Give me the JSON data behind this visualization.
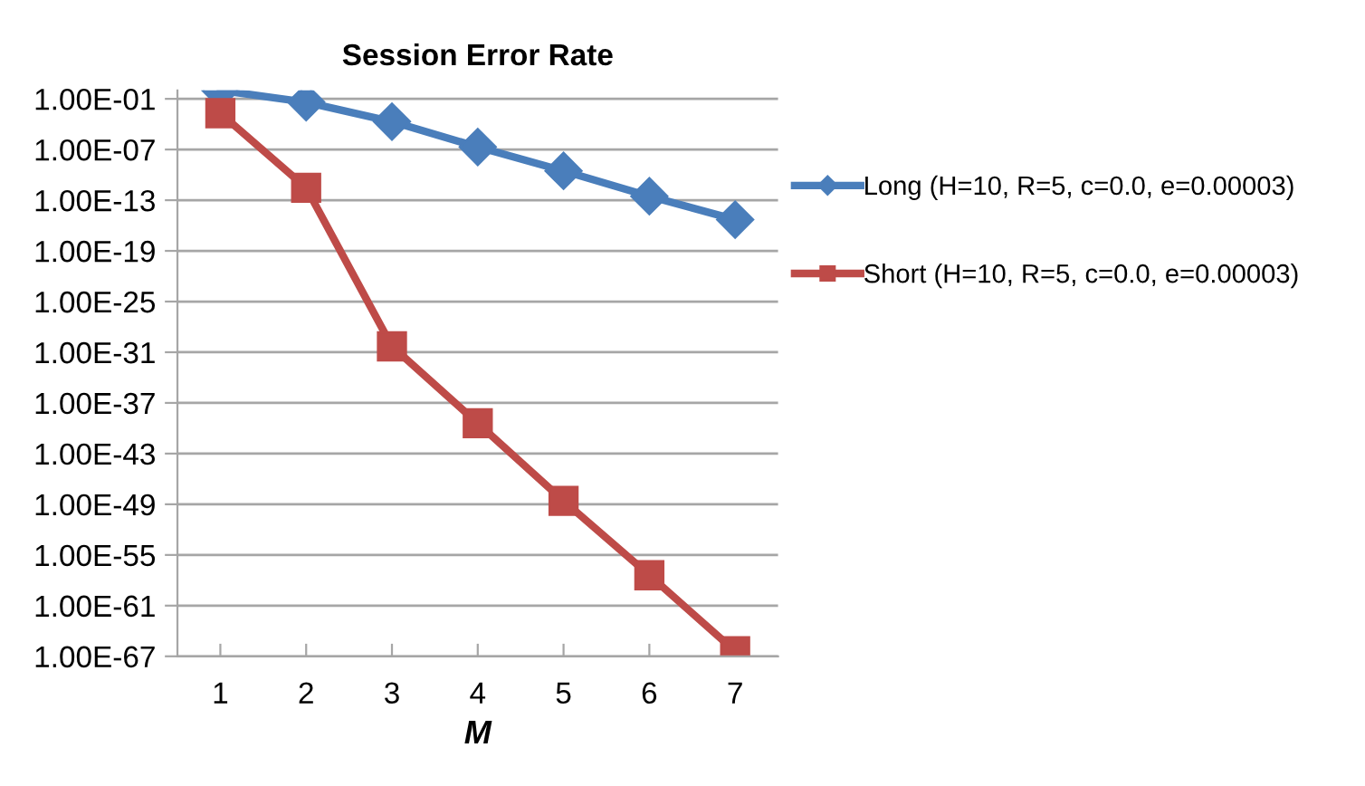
{
  "chart_data": {
    "type": "line",
    "title": "Session Error Rate",
    "xlabel": "M",
    "categories": [
      "1",
      "2",
      "3",
      "4",
      "5",
      "6",
      "7"
    ],
    "series": [
      {
        "name": "Long (H=10, R=5, c=0.0, e=0.00003)",
        "color": "#4a7ebb",
        "marker": "diamond",
        "values": [
          1,
          0.04,
          0.0002,
          2e-07,
          3e-10,
          3e-13,
          5e-16
        ]
      },
      {
        "name": "Short (H=10, R=5, c=0.0, e=0.00003)",
        "color": "#be4b48",
        "marker": "square",
        "values": [
          0.002,
          3e-12,
          5e-31,
          4e-40,
          2.5e-49,
          4e-58,
          4e-67
        ]
      }
    ],
    "log": "y",
    "ylim": [
      1e-67,
      1
    ],
    "yticks": [
      {
        "value": 0.1,
        "label": "1.00E-01"
      },
      {
        "value": 1e-07,
        "label": "1.00E-07"
      },
      {
        "value": 1e-13,
        "label": "1.00E-13"
      },
      {
        "value": 1e-19,
        "label": "1.00E-19"
      },
      {
        "value": 1e-25,
        "label": "1.00E-25"
      },
      {
        "value": 1e-31,
        "label": "1.00E-31"
      },
      {
        "value": 1e-37,
        "label": "1.00E-37"
      },
      {
        "value": 1e-43,
        "label": "1.00E-43"
      },
      {
        "value": 1e-49,
        "label": "1.00E-49"
      },
      {
        "value": 1e-55,
        "label": "1.00E-55"
      },
      {
        "value": 1e-61,
        "label": "1.00E-61"
      },
      {
        "value": 1e-67,
        "label": "1.00E-67"
      }
    ],
    "grid": "y",
    "legend": "right",
    "line_style": "solid"
  }
}
